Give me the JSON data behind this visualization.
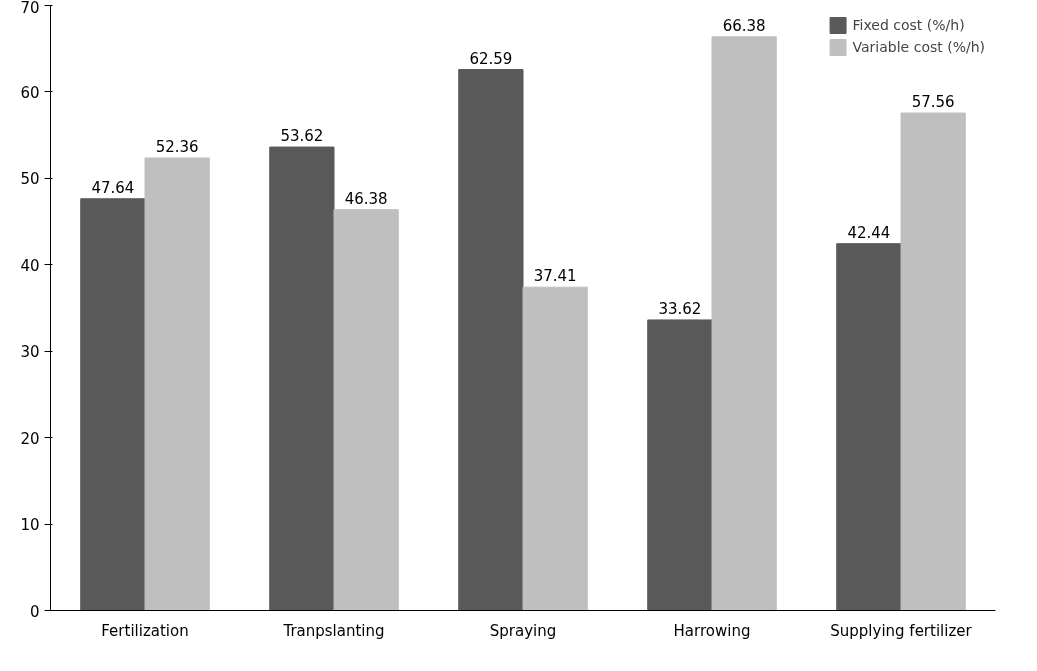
{
  "chart_data": {
    "type": "bar",
    "categories": [
      "Fertilization",
      "Tranpslanting",
      "Spraying",
      "Harrowing",
      "Supplying fertilizer"
    ],
    "series": [
      {
        "name": "Fixed cost (%/h)",
        "color": "#595959",
        "values": [
          47.64,
          53.62,
          62.59,
          33.62,
          42.44
        ]
      },
      {
        "name": "Variable cost (%/h)",
        "color": "#bfbfbf",
        "values": [
          52.36,
          46.38,
          37.41,
          66.38,
          57.56
        ]
      }
    ],
    "ylim": [
      0,
      70
    ],
    "yticks": [
      0,
      10,
      20,
      30,
      40,
      50,
      60,
      70
    ],
    "data_labels": true,
    "grid": false,
    "legend": "top right"
  }
}
